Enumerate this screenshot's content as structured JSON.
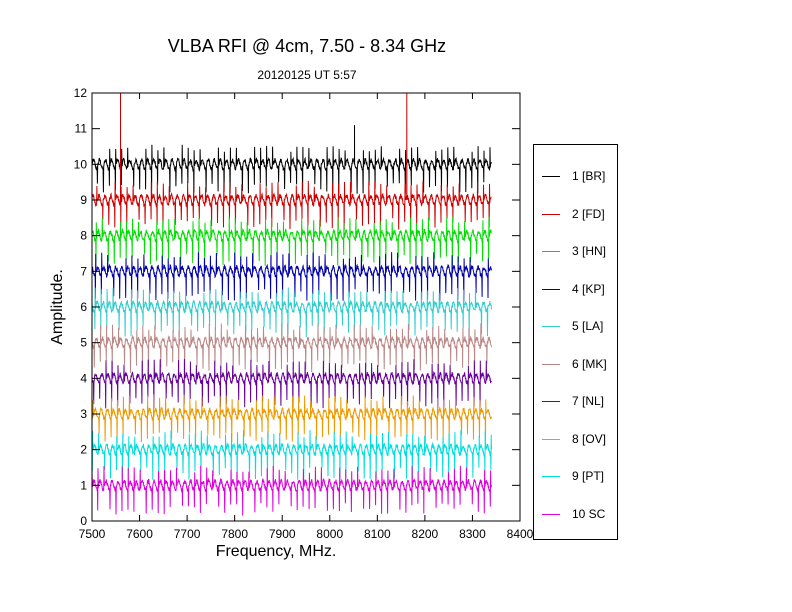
{
  "chart_data": {
    "type": "line",
    "title": "VLBA RFI @ 4cm, 7.50 - 8.34 GHz",
    "subtitle": "20120125   UT 5:57",
    "xlabel": "Frequency, MHz.",
    "ylabel": "Amplitude.",
    "xlim": [
      7500,
      8400
    ],
    "ylim": [
      0,
      12
    ],
    "x_ticks": [
      7500,
      7600,
      7700,
      7800,
      7900,
      8000,
      8100,
      8200,
      8300,
      8400
    ],
    "y_ticks": [
      0,
      1,
      2,
      3,
      4,
      5,
      6,
      7,
      8,
      9,
      10,
      11,
      12
    ],
    "x_data_range": [
      7500,
      8340
    ],
    "legend_position": "right",
    "series": [
      {
        "name": "1 [BR]",
        "color": "#000000",
        "baseline": 10.0,
        "spikes": [
          [
            8052,
            11.1
          ]
        ]
      },
      {
        "name": "2 [FD]",
        "color": "#cc0000",
        "baseline": 9.0,
        "spikes": [
          [
            7560,
            12.0
          ],
          [
            8162,
            12.0
          ]
        ]
      },
      {
        "name": "3 [HN]",
        "color": "#00dd00",
        "baseline": 8.0,
        "spikes": []
      },
      {
        "name": "4 [KP]",
        "color": "#0000aa",
        "baseline": 7.0,
        "spikes": []
      },
      {
        "name": "5 [LA]",
        "color": "#33cccc",
        "baseline": 6.0,
        "spikes": []
      },
      {
        "name": "6 [MK]",
        "color": "#bb8888",
        "baseline": 5.0,
        "spikes": []
      },
      {
        "name": "7 [NL]",
        "color": "#660099",
        "baseline": 4.0,
        "spikes": []
      },
      {
        "name": "8 [OV]",
        "color": "#ee9900",
        "baseline": 3.0,
        "spikes": []
      },
      {
        "name": "9 [PT]",
        "color": "#00dddd",
        "baseline": 2.0,
        "spikes": []
      },
      {
        "name": "10 SC",
        "color": "#dd00dd",
        "baseline": 1.0,
        "spikes": []
      }
    ]
  }
}
